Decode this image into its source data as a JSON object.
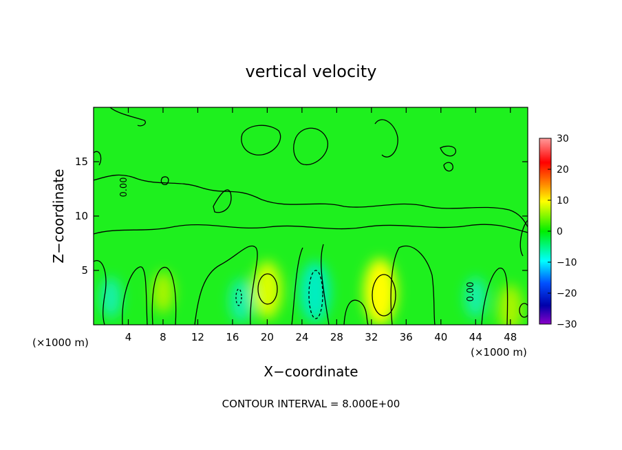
{
  "chart_data": {
    "type": "heatmap",
    "title": "vertical velocity",
    "xlabel": "X−coordinate",
    "ylabel": "Z−coordinate",
    "x_unit_left": "(×1000 m)",
    "x_unit_right": "(×1000 m)",
    "xlim": [
      0,
      50
    ],
    "ylim": [
      0,
      20
    ],
    "x_ticks": [
      4,
      8,
      12,
      16,
      20,
      24,
      28,
      32,
      36,
      40,
      44,
      48
    ],
    "y_ticks": [
      5,
      10,
      15
    ],
    "colorbar": {
      "range": [
        -30,
        30
      ],
      "ticks": [
        30,
        20,
        10,
        0,
        -10,
        -20,
        -30
      ],
      "tick_labels": [
        "30",
        "20",
        "10",
        "0",
        "−10",
        "−20",
        "−30"
      ],
      "colors": [
        "#ff9a9a",
        "#ff0000",
        "#ff8c00",
        "#ffff00",
        "#00ee00",
        "#00ffff",
        "#0050ff",
        "#0000aa",
        "#8a00c8"
      ]
    },
    "footer": "CONTOUR INTERVAL = 8.000E+00",
    "contour_label": "0.00",
    "features": [
      {
        "x": 20,
        "z": 3.2,
        "w": 9
      },
      {
        "x": 33,
        "z": 3.0,
        "w": 12
      },
      {
        "x": 8,
        "z": 3.0,
        "w": 4
      },
      {
        "x": 48,
        "z": 1.5,
        "w": 6
      },
      {
        "x": 25.5,
        "z": 3.0,
        "w": -10
      },
      {
        "x": 17,
        "z": 2.2,
        "w": -5
      },
      {
        "x": 2,
        "z": 2.5,
        "w": -4
      },
      {
        "x": 44,
        "z": 2.5,
        "w": -4
      }
    ]
  }
}
